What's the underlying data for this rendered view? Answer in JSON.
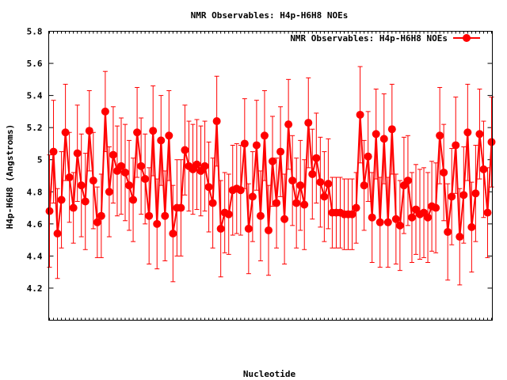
{
  "chart_data": {
    "type": "line",
    "title": "NMR Observables: H4p-H6H8 NOEs",
    "xlabel": "Nucleotide",
    "ylabel": "H4p-H6H8 (Angstroms)",
    "ylim": [
      4.0,
      5.8
    ],
    "yticks": [
      "4.2",
      "4.4",
      "4.6",
      "4.8",
      "5",
      "5.2",
      "5.4",
      "5.6",
      "5.8"
    ],
    "grid": false,
    "legend": {
      "position": "top-right",
      "label": "NMR Observables: H4p-H6H8 NOEs"
    },
    "series": [
      {
        "name": "NMR Observables: H4p-H6H8 NOEs",
        "color": "#ff0000",
        "marker": "circle",
        "values": [
          4.68,
          5.05,
          4.54,
          4.75,
          5.17,
          4.89,
          4.7,
          5.04,
          4.84,
          4.74,
          5.18,
          4.87,
          4.61,
          4.65,
          5.3,
          4.8,
          5.03,
          4.93,
          4.96,
          4.92,
          4.84,
          4.75,
          5.17,
          4.96,
          4.88,
          4.65,
          5.18,
          4.6,
          5.12,
          4.65,
          5.15,
          4.54,
          4.7,
          4.7,
          5.06,
          4.96,
          4.94,
          4.97,
          4.93,
          4.96,
          4.83,
          4.73,
          5.24,
          4.57,
          4.67,
          4.66,
          4.81,
          4.82,
          4.81,
          5.1,
          4.57,
          4.77,
          5.09,
          4.65,
          5.15,
          4.56,
          4.99,
          4.73,
          5.05,
          4.63,
          5.22,
          4.87,
          4.73,
          4.84,
          4.72,
          5.23,
          4.91,
          5.01,
          4.86,
          4.77,
          4.85,
          4.67,
          4.67,
          4.67,
          4.66,
          4.66,
          4.66,
          4.7,
          5.28,
          4.84,
          5.02,
          4.64,
          5.16,
          4.61,
          5.13,
          4.61,
          5.19,
          4.63,
          4.59,
          4.84,
          4.87,
          4.64,
          4.69,
          4.66,
          4.67,
          4.64,
          4.71,
          4.7,
          5.15,
          4.92,
          4.55,
          4.77,
          5.09,
          4.52,
          4.78,
          5.17,
          4.58,
          4.79,
          5.16,
          4.94,
          4.67,
          5.11
        ],
        "errors": [
          0.35,
          0.32,
          0.28,
          0.3,
          0.3,
          0.28,
          0.22,
          0.3,
          0.32,
          0.3,
          0.25,
          0.3,
          0.22,
          0.26,
          0.25,
          0.28,
          0.3,
          0.28,
          0.3,
          0.3,
          0.28,
          0.26,
          0.28,
          0.3,
          0.28,
          0.3,
          0.28,
          0.28,
          0.28,
          0.28,
          0.28,
          0.3,
          0.3,
          0.3,
          0.28,
          0.28,
          0.28,
          0.28,
          0.28,
          0.28,
          0.28,
          0.28,
          0.28,
          0.3,
          0.25,
          0.25,
          0.28,
          0.28,
          0.28,
          0.28,
          0.28,
          0.28,
          0.28,
          0.28,
          0.28,
          0.28,
          0.28,
          0.28,
          0.28,
          0.28,
          0.28,
          0.28,
          0.28,
          0.28,
          0.28,
          0.28,
          0.28,
          0.28,
          0.28,
          0.28,
          0.28,
          0.22,
          0.22,
          0.22,
          0.22,
          0.22,
          0.22,
          0.22,
          0.3,
          0.28,
          0.28,
          0.28,
          0.28,
          0.28,
          0.28,
          0.28,
          0.28,
          0.28,
          0.28,
          0.3,
          0.28,
          0.28,
          0.28,
          0.28,
          0.28,
          0.28,
          0.28,
          0.28,
          0.3,
          0.3,
          0.3,
          0.3,
          0.3,
          0.3,
          0.3,
          0.3,
          0.28,
          0.3,
          0.28,
          0.3,
          0.28,
          0.28
        ]
      }
    ]
  }
}
